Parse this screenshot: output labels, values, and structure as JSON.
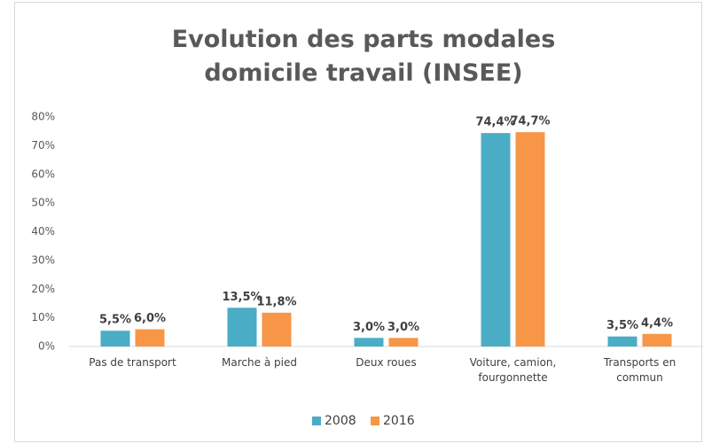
{
  "chart_data": {
    "type": "bar",
    "title": "Evolution des parts modales domicile travail (INSEE)",
    "categories": [
      "Pas de transport",
      "Marche à pied",
      "Deux roues",
      "Voiture, camion, fourgonnette",
      "Transports en commun"
    ],
    "series": [
      {
        "name": "2008",
        "color": "#4bacc6",
        "values": [
          5.5,
          13.5,
          3.0,
          74.4,
          3.5
        ],
        "value_labels": [
          "5,5%",
          "13,5%",
          "3,0%",
          "74,4%",
          "3,5%"
        ]
      },
      {
        "name": "2016",
        "color": "#f79646",
        "values": [
          6.0,
          11.8,
          3.0,
          74.7,
          4.4
        ],
        "value_labels": [
          "6,0%",
          "11,8%",
          "3,0%",
          "74,7%",
          "4,4%"
        ]
      }
    ],
    "ylim": [
      0,
      80
    ],
    "yticks": [
      {
        "value": 0,
        "label": "0%"
      },
      {
        "value": 10,
        "label": "10%"
      },
      {
        "value": 20,
        "label": "20%"
      },
      {
        "value": 30,
        "label": "30%"
      },
      {
        "value": 40,
        "label": "40%"
      },
      {
        "value": 50,
        "label": "50%"
      },
      {
        "value": 60,
        "label": "60%"
      },
      {
        "value": 70,
        "label": "70%"
      },
      {
        "value": 80,
        "label": "80%"
      }
    ],
    "grid": false,
    "legend": "bottom"
  }
}
